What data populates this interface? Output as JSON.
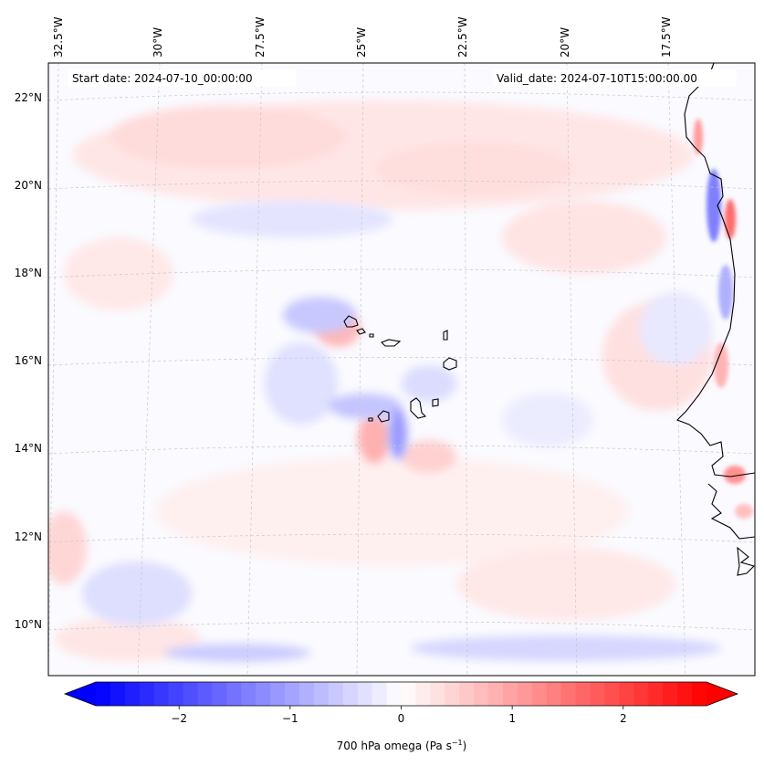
{
  "map": {
    "start_label": "Start date: 2024-07-10_00:00:00",
    "valid_label": "Valid_date: 2024-07-10T15:00:00.00",
    "lon_ticks": [
      "32.5°W",
      "30°W",
      "27.5°W",
      "25°W",
      "22.5°W",
      "20°W",
      "17.5°W"
    ],
    "lat_ticks": [
      "22°N",
      "20°N",
      "18°N",
      "16°N",
      "14°N",
      "12°N",
      "10°N"
    ],
    "extent": {
      "lon_min": -33.0,
      "lon_max": -15.5,
      "lat_min": 9.0,
      "lat_max": 22.7
    },
    "field": "700 hPa omega",
    "coastline_color": "#000000",
    "gridline_color": "#c8c8c8"
  },
  "colorbar": {
    "label_text": "700 hPa omega (Pa s",
    "label_exp": "−1",
    "label_close": ")",
    "ticks": [
      "−2",
      "−1",
      "0",
      "1",
      "2"
    ],
    "tick_values": [
      -2,
      -1,
      0,
      1,
      2
    ],
    "range": [
      -2.75,
      2.75
    ],
    "cmap": "bwr",
    "extend": "both",
    "neg_color": "#0000ff",
    "mid_color": "#ffffff",
    "pos_color": "#ff0000"
  }
}
